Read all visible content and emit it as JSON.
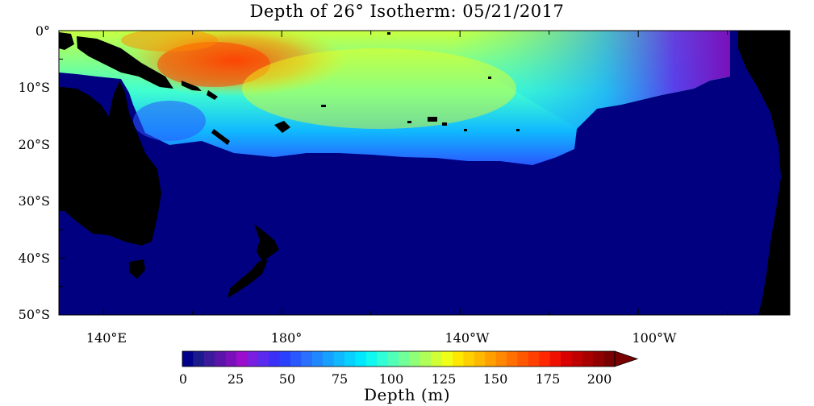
{
  "title": "Depth of 26° Isotherm: 05/21/2017",
  "y_ticks": [
    {
      "label": "0°",
      "lat": 0
    },
    {
      "label": "10°S",
      "lat": -10
    },
    {
      "label": "20°S",
      "lat": -20
    },
    {
      "label": "30°S",
      "lat": -30
    },
    {
      "label": "40°S",
      "lat": -40
    },
    {
      "label": "50°S",
      "lat": -50
    }
  ],
  "x_ticks": [
    {
      "label": "140°E",
      "lon": 140
    },
    {
      "label": "180°",
      "lon": 180
    },
    {
      "label": "140°W",
      "lon": 220
    },
    {
      "label": "100°W",
      "lon": 260
    }
  ],
  "colorbar": {
    "title": "Depth (m)",
    "min": 0,
    "max": 200,
    "step": 5,
    "labels": [
      "0",
      "25",
      "50",
      "75",
      "100",
      "125",
      "150",
      "175",
      "200"
    ],
    "extend": "max",
    "colors": [
      "#00008b",
      "#1a1a8c",
      "#3a1a9a",
      "#5a14aa",
      "#7a10ba",
      "#9a0ecc",
      "#7a1ee0",
      "#5a2aee",
      "#3a30f8",
      "#2a40ff",
      "#2a58ff",
      "#2a70ff",
      "#2088ff",
      "#18a0ff",
      "#10b8ff",
      "#08d0ff",
      "#00e8ff",
      "#10f8f0",
      "#30ffd8",
      "#50ffb8",
      "#70ff98",
      "#90ff78",
      "#b0ff58",
      "#d0ff38",
      "#f0ff18",
      "#ffe800",
      "#ffd000",
      "#ffb800",
      "#ffa000",
      "#ff8800",
      "#ff7000",
      "#ff5800",
      "#ff4000",
      "#ff2800",
      "#f01000",
      "#d80000",
      "#c00000",
      "#a80000",
      "#900000",
      "#780000"
    ]
  },
  "colors": {
    "deep_ocean": "#000080",
    "land": "#000000",
    "background": "#ffffff"
  }
}
